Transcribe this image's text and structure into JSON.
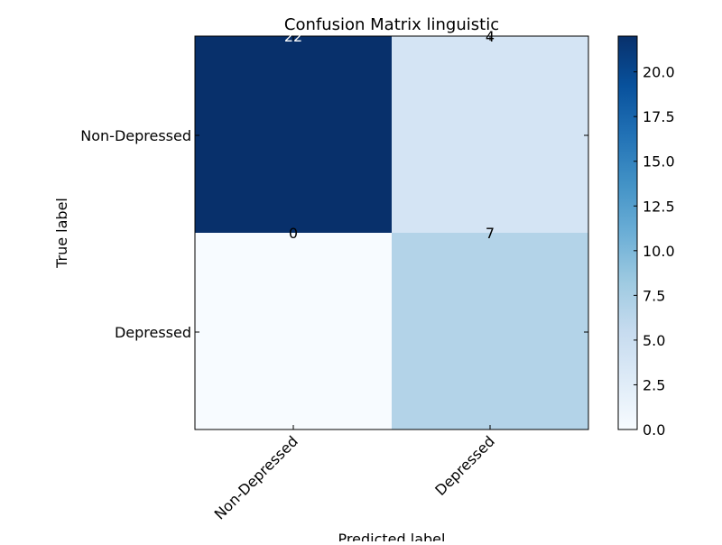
{
  "chart_data": {
    "type": "heatmap",
    "title": "Confusion Matrix linguistic",
    "xlabel": "Predicted label",
    "ylabel": "True label",
    "x_categories": [
      "Non-Depressed",
      "Depressed"
    ],
    "y_categories": [
      "Non-Depressed",
      "Depressed"
    ],
    "values": [
      [
        22,
        4
      ],
      [
        0,
        7
      ]
    ],
    "colorscale": "Blues",
    "vmin": 0,
    "vmax": 22,
    "colorbar_ticks": [
      "0.0",
      "2.5",
      "5.0",
      "7.5",
      "10.0",
      "12.5",
      "15.0",
      "17.5",
      "20.0"
    ],
    "cell_colors": [
      [
        "#08306b",
        "#d4e4f4"
      ],
      [
        "#f7fbff",
        "#b3d3e8"
      ]
    ],
    "text_colors": [
      [
        "#ffffff",
        "#000000"
      ],
      [
        "#000000",
        "#000000"
      ]
    ]
  }
}
